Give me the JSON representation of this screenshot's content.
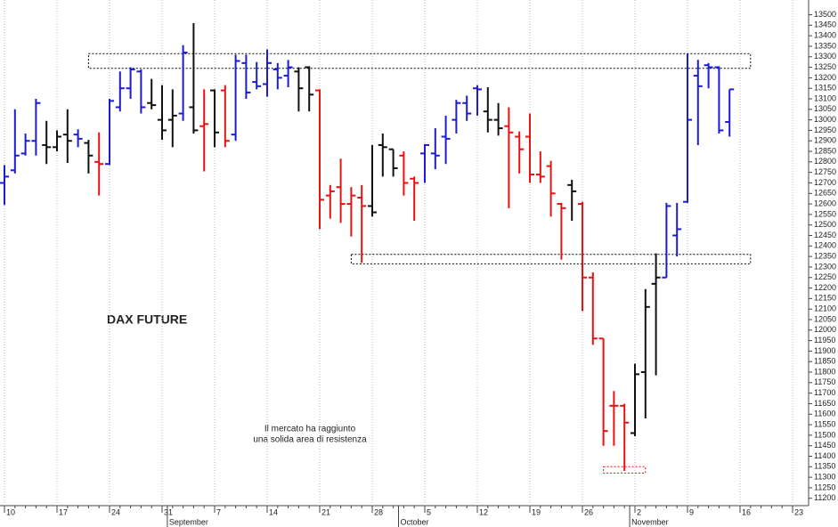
{
  "chart_data": {
    "type": "ohlc",
    "title": "DAX FUTURE",
    "annotation": [
      "Il mercato ha raggiunto",
      "una solida area di resistenza"
    ],
    "categories": [
      "10",
      null,
      null,
      null,
      null,
      "17",
      null,
      null,
      null,
      null,
      "24",
      null,
      null,
      null,
      null,
      "31",
      null,
      null,
      null,
      null,
      "7",
      null,
      null,
      null,
      null,
      "14",
      null,
      null,
      null,
      null,
      "21",
      null,
      null,
      null,
      null,
      "28",
      null,
      null,
      null,
      null,
      "5",
      null,
      null,
      null,
      null,
      "12",
      null,
      null,
      null,
      null,
      "19",
      null,
      null,
      null,
      null,
      "26",
      null,
      null,
      null,
      null,
      "2",
      null,
      null,
      null,
      null,
      "9",
      null,
      null,
      null,
      null,
      "16",
      null,
      null,
      null,
      null,
      "23"
    ],
    "months": [
      {
        "label": "September",
        "category": 16
      },
      {
        "label": "October",
        "category": 38
      },
      {
        "label": "November",
        "category": 60
      }
    ],
    "open": [
      12700,
      12760,
      12840,
      12900,
      12880,
      12870,
      12930,
      12930,
      12890,
      12800,
      12790,
      13060,
      13150,
      13230,
      13080,
      13000,
      13000,
      13030,
      13060,
      12970,
      13140,
      13140,
      12930,
      13270,
      13180,
      13170,
      13240,
      13210,
      13230,
      13250,
      13140,
      12640,
      12680,
      12600,
      12630,
      12590,
      12880,
      12860,
      12830,
      12720,
      12840,
      12840,
      12920,
      13000,
      13080,
      13150,
      13040,
      13000,
      12970,
      12920,
      12920,
      12740,
      12780,
      12600,
      12690,
      12600,
      12250,
      11960,
      11640,
      11640,
      11510,
      11800,
      12220,
      12250,
      12450,
      12610,
      13210,
      13260,
      13250,
      12990,
      null,
      null,
      null,
      null,
      null,
      null
    ],
    "high": [
      12785,
      13050,
      12935,
      13100,
      12995,
      12950,
      13050,
      12955,
      12905,
      12940,
      13100,
      13230,
      13250,
      13240,
      13195,
      13165,
      13145,
      13355,
      13460,
      13145,
      13145,
      13165,
      13310,
      13310,
      13275,
      13335,
      13270,
      13285,
      13250,
      13255,
      13145,
      12690,
      12815,
      12680,
      12690,
      12880,
      12935,
      12860,
      12850,
      12730,
      12885,
      12960,
      13020,
      13095,
      13115,
      13165,
      13155,
      13080,
      13060,
      12945,
      13030,
      12850,
      12805,
      12605,
      12715,
      12610,
      12275,
      11960,
      11710,
      11650,
      11840,
      12195,
      12365,
      12605,
      12605,
      13315,
      13285,
      13270,
      13255,
      13145,
      null,
      null,
      null,
      null,
      null,
      null
    ],
    "low": [
      12595,
      12745,
      12830,
      12830,
      12790,
      12850,
      12795,
      12870,
      12745,
      12640,
      12785,
      13040,
      13100,
      13030,
      13050,
      12905,
      12870,
      12995,
      12935,
      12755,
      12870,
      12870,
      12900,
      13100,
      13145,
      13110,
      13145,
      13155,
      13040,
      13040,
      12480,
      12530,
      12510,
      12445,
      12320,
      12540,
      12730,
      12730,
      12640,
      12520,
      12700,
      12765,
      12790,
      12935,
      12995,
      13020,
      12940,
      12925,
      12580,
      12745,
      12700,
      12700,
      12540,
      12335,
      12520,
      12090,
      11930,
      11450,
      11450,
      11330,
      11495,
      11580,
      11785,
      12250,
      12350,
      12605,
      12880,
      13150,
      12935,
      12920,
      null,
      null,
      null,
      null,
      null,
      null
    ],
    "close": [
      12730,
      12830,
      12900,
      13080,
      12870,
      12920,
      12900,
      12910,
      12830,
      12790,
      13090,
      13150,
      13240,
      13060,
      13070,
      12950,
      13020,
      13320,
      12950,
      12980,
      12940,
      12900,
      13280,
      13130,
      13160,
      13270,
      13200,
      13250,
      13150,
      13120,
      12620,
      12660,
      12600,
      12640,
      12590,
      12560,
      12870,
      12770,
      12700,
      12700,
      12880,
      12830,
      12910,
      13080,
      13030,
      13145,
      13000,
      12960,
      12940,
      12860,
      12740,
      12730,
      12650,
      12580,
      12660,
      12250,
      11960,
      11520,
      11640,
      11560,
      11790,
      12110,
      12250,
      12590,
      12480,
      13000,
      13160,
      13250,
      12950,
      13145,
      null,
      null,
      null,
      null,
      null,
      null
    ],
    "bar_colors": [
      "#1c1cd6",
      "#1c1cd6",
      "#1c1cd6",
      "#1c1cd6",
      "#111111",
      "#111111",
      "#111111",
      "#1c1cd6",
      "#111111",
      "#e81212",
      "#1c1cd6",
      "#1c1cd6",
      "#1c1cd6",
      "#1c1cd6",
      "#111111",
      "#111111",
      "#111111",
      "#1c1cd6",
      "#111111",
      "#e81212",
      "#111111",
      "#e81212",
      "#1c1cd6",
      "#1c1cd6",
      "#1c1cd6",
      "#1c1cd6",
      "#1c1cd6",
      "#1c1cd6",
      "#111111",
      "#111111",
      "#e81212",
      "#e81212",
      "#e81212",
      "#e81212",
      "#e81212",
      "#111111",
      "#111111",
      "#111111",
      "#e81212",
      "#e81212",
      "#1c1cd6",
      "#1c1cd6",
      "#1c1cd6",
      "#1c1cd6",
      "#1c1cd6",
      "#1c1cd6",
      "#111111",
      "#111111",
      "#e81212",
      "#e81212",
      "#e81212",
      "#e81212",
      "#e81212",
      "#e81212",
      "#111111",
      "#e81212",
      "#e81212",
      "#e81212",
      "#e81212",
      "#e81212",
      "#111111",
      "#111111",
      "#111111",
      "#1c1cd6",
      "#1c1cd6",
      "#1c1cd6",
      "#1c1cd6",
      "#1c1cd6",
      "#1c1cd6",
      "#1c1cd6",
      null,
      null,
      null,
      null,
      null,
      null
    ],
    "zones": [
      {
        "low": 13245,
        "high": 13315,
        "start": 8,
        "end": 71,
        "color": "#000000"
      },
      {
        "low": 12315,
        "high": 12360,
        "start": 33,
        "end": 71,
        "color": "#000000"
      },
      {
        "low": 11320,
        "high": 11350,
        "start": 57,
        "end": 61,
        "color": "#e81212"
      }
    ],
    "ylim": [
      11165,
      13570
    ],
    "yticks": [
      11200,
      11250,
      11300,
      11350,
      11400,
      11450,
      11500,
      11550,
      11600,
      11650,
      11700,
      11750,
      11800,
      11850,
      11900,
      11950,
      12000,
      12050,
      12100,
      12150,
      12200,
      12250,
      12300,
      12350,
      12400,
      12450,
      12500,
      12550,
      12600,
      12650,
      12700,
      12750,
      12800,
      12850,
      12900,
      12950,
      13000,
      13050,
      13100,
      13150,
      13200,
      13250,
      13300,
      13350,
      13400,
      13450,
      13500
    ],
    "grid": true
  }
}
